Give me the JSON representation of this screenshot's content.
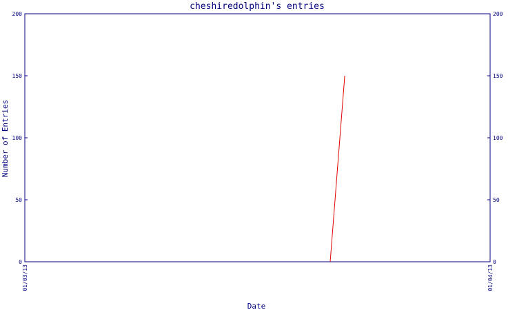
{
  "chart_data": {
    "type": "line",
    "title": "cheshiredolphin's entries",
    "xlabel": "Date",
    "ylabel": "Number of Entries",
    "ylim": [
      0,
      200
    ],
    "yticks": [
      0,
      50,
      100,
      150,
      200
    ],
    "xtick_labels": [
      "01/03/13",
      "01/04/13"
    ],
    "xlim": [
      "2013-01-03",
      "2013-01-04"
    ],
    "grid": false,
    "series": [
      {
        "color": "#e00000",
        "points": [
          {
            "x": "2013-01-03 15:45",
            "y": 0
          },
          {
            "x": "2013-01-03 16:30",
            "y": 150
          }
        ]
      }
    ]
  }
}
